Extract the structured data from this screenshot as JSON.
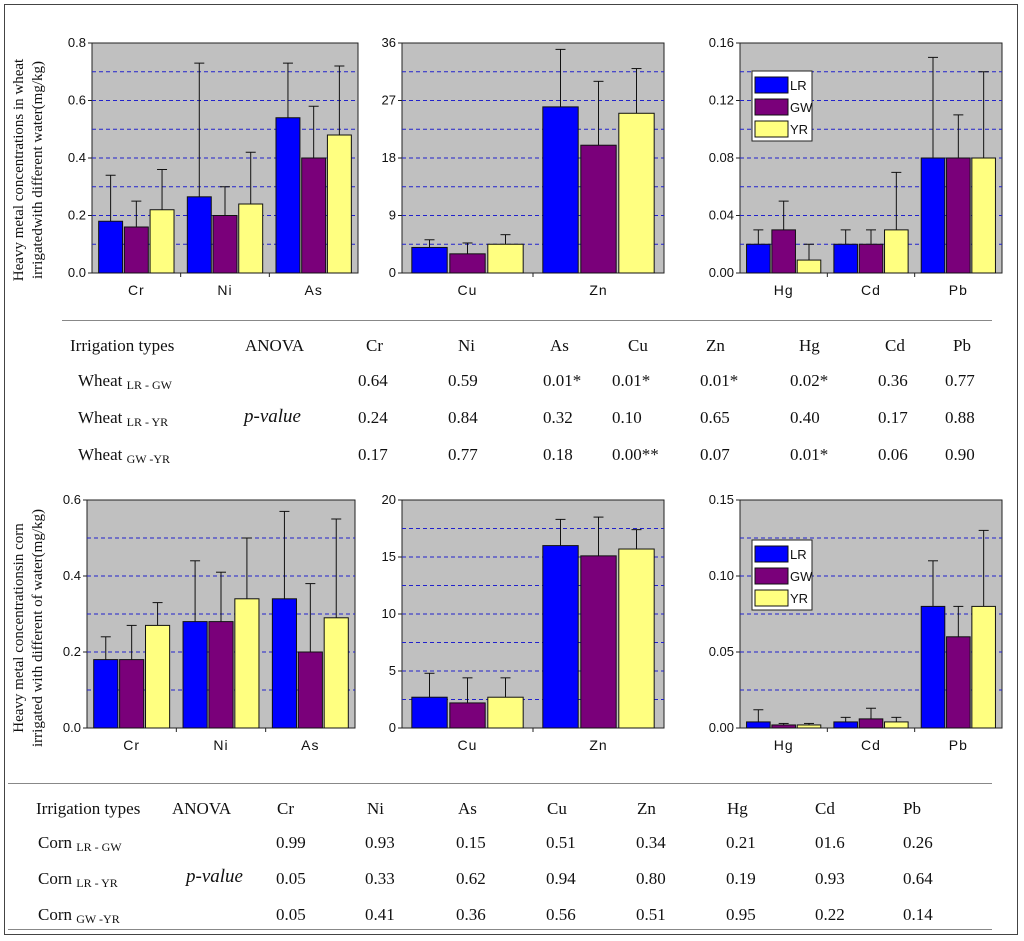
{
  "colors": {
    "LR": "#0000ff",
    "GW": "#7a007a",
    "YR": "#ffff80",
    "panel_bg": "#c0c0c0",
    "grid": "#2222cc"
  },
  "wheat_ylabel": [
    "Heavy metal concentrations in wheat",
    "irrigatedwith different water(mg/kg)"
  ],
  "corn_ylabel": [
    "Heavy metal concentrationsin corn",
    "irrigated with different of water(mg/kg)"
  ],
  "chart_data": [
    {
      "type": "bar",
      "id": "w1",
      "group": "wheat",
      "categories": [
        "Cr",
        "Ni",
        "As"
      ],
      "series": [
        {
          "name": "LR",
          "values": [
            0.18,
            0.265,
            0.54
          ],
          "errors": [
            0.16,
            0.465,
            0.19
          ]
        },
        {
          "name": "GW",
          "values": [
            0.16,
            0.2,
            0.4
          ],
          "errors": [
            0.09,
            0.1,
            0.18
          ]
        },
        {
          "name": "YR",
          "values": [
            0.22,
            0.24,
            0.48
          ],
          "errors": [
            0.14,
            0.18,
            0.24
          ]
        }
      ],
      "ylim": [
        0,
        0.8
      ],
      "yticks": [
        "0.0",
        "0.2",
        "0.4",
        "0.6",
        "0.8"
      ],
      "grid_step": 0.1,
      "legend": false
    },
    {
      "type": "bar",
      "id": "w2",
      "group": "wheat",
      "categories": [
        "Cu",
        "Zn"
      ],
      "series": [
        {
          "name": "LR",
          "values": [
            4,
            26
          ],
          "errors": [
            1.2,
            9
          ]
        },
        {
          "name": "GW",
          "values": [
            3,
            20
          ],
          "errors": [
            1.7,
            10
          ]
        },
        {
          "name": "YR",
          "values": [
            4.5,
            25
          ],
          "errors": [
            1.5,
            7
          ]
        }
      ],
      "ylim": [
        0,
        36
      ],
      "yticks": [
        "0",
        "9",
        "18",
        "27",
        "36"
      ],
      "grid_step": 4.5,
      "legend": false
    },
    {
      "type": "bar",
      "id": "w3",
      "group": "wheat",
      "categories": [
        "Hg",
        "Cd",
        "Pb"
      ],
      "series": [
        {
          "name": "LR",
          "values": [
            0.02,
            0.02,
            0.08
          ],
          "errors": [
            0.01,
            0.01,
            0.07
          ]
        },
        {
          "name": "GW",
          "values": [
            0.03,
            0.02,
            0.08
          ],
          "errors": [
            0.02,
            0.01,
            0.03
          ]
        },
        {
          "name": "YR",
          "values": [
            0.009,
            0.03,
            0.08
          ],
          "errors": [
            0.011,
            0.04,
            0.06
          ]
        }
      ],
      "ylim": [
        0,
        0.16
      ],
      "yticks": [
        "0.00",
        "0.04",
        "0.08",
        "0.12",
        "0.16"
      ],
      "grid_step": 0.02,
      "legend": true
    },
    {
      "type": "bar",
      "id": "c1",
      "group": "corn",
      "categories": [
        "Cr",
        "Ni",
        "As"
      ],
      "series": [
        {
          "name": "LR",
          "values": [
            0.18,
            0.28,
            0.34
          ],
          "errors": [
            0.06,
            0.16,
            0.23
          ]
        },
        {
          "name": "GW",
          "values": [
            0.18,
            0.28,
            0.2
          ],
          "errors": [
            0.09,
            0.13,
            0.18
          ]
        },
        {
          "name": "YR",
          "values": [
            0.27,
            0.34,
            0.29
          ],
          "errors": [
            0.06,
            0.16,
            0.26
          ]
        }
      ],
      "ylim": [
        0,
        0.6
      ],
      "yticks": [
        "0.0",
        "0.2",
        "0.4",
        "0.6"
      ],
      "grid_step": 0.1,
      "legend": false
    },
    {
      "type": "bar",
      "id": "c2",
      "group": "corn",
      "categories": [
        "Cu",
        "Zn"
      ],
      "series": [
        {
          "name": "LR",
          "values": [
            2.7,
            16
          ],
          "errors": [
            2.1,
            2.3
          ]
        },
        {
          "name": "GW",
          "values": [
            2.2,
            15.1
          ],
          "errors": [
            2.2,
            3.4
          ]
        },
        {
          "name": "YR",
          "values": [
            2.7,
            15.7
          ],
          "errors": [
            1.7,
            1.7
          ]
        }
      ],
      "ylim": [
        0,
        20
      ],
      "yticks": [
        "0",
        "5",
        "10",
        "15",
        "20"
      ],
      "grid_step": 2.5,
      "legend": false
    },
    {
      "type": "bar",
      "id": "c3",
      "group": "corn",
      "categories": [
        "Hg",
        "Cd",
        "Pb"
      ],
      "series": [
        {
          "name": "LR",
          "values": [
            0.004,
            0.004,
            0.08
          ],
          "errors": [
            0.008,
            0.003,
            0.03
          ]
        },
        {
          "name": "GW",
          "values": [
            0.002,
            0.006,
            0.06
          ],
          "errors": [
            0.001,
            0.007,
            0.02
          ]
        },
        {
          "name": "YR",
          "values": [
            0.002,
            0.004,
            0.08
          ],
          "errors": [
            0.001,
            0.003,
            0.05
          ]
        }
      ],
      "ylim": [
        0,
        0.15
      ],
      "yticks": [
        "0.00",
        "0.05",
        "0.10",
        "0.15"
      ],
      "grid_step": 0.025,
      "legend": true
    }
  ],
  "wheat_table": {
    "headers": [
      "Irrigation types",
      "ANOVA",
      "Cr",
      "Ni",
      "As",
      "Cu",
      "Zn",
      "Hg",
      "Cd",
      "Pb"
    ],
    "pvalue_label": "p-value",
    "rows": [
      {
        "crop": "Wheat",
        "sub": "LR - GW",
        "values": [
          "0.64",
          "0.59",
          "0.01*",
          "0.01*",
          "0.01*",
          "0.02*",
          "0.36",
          "0.77"
        ]
      },
      {
        "crop": "Wheat",
        "sub": "LR - YR",
        "values": [
          "0.24",
          "0.84",
          "0.32",
          "0.10",
          "0.65",
          "0.40",
          "0.17",
          "0.88"
        ]
      },
      {
        "crop": "Wheat",
        "sub": "GW -YR",
        "values": [
          "0.17",
          "0.77",
          "0.18",
          "0.00**",
          "0.07",
          "0.01*",
          "0.06",
          "0.90"
        ]
      }
    ]
  },
  "corn_table": {
    "headers": [
      "Irrigation types",
      "ANOVA",
      "Cr",
      "Ni",
      "As",
      "Cu",
      "Zn",
      "Hg",
      "Cd",
      "Pb"
    ],
    "pvalue_label": "p-value",
    "rows": [
      {
        "crop": "Corn",
        "sub": "LR - GW",
        "values": [
          "0.99",
          "0.93",
          "0.15",
          "0.51",
          "0.34",
          "0.21",
          "01.6",
          "0.26"
        ]
      },
      {
        "crop": "Corn",
        "sub": "LR - YR",
        "values": [
          "0.05",
          "0.33",
          "0.62",
          "0.94",
          "0.80",
          "0.19",
          "0.93",
          "0.64"
        ]
      },
      {
        "crop": "Corn",
        "sub": "GW -YR",
        "values": [
          "0.05",
          "0.41",
          "0.36",
          "0.56",
          "0.51",
          "0.95",
          "0.22",
          "0.14"
        ]
      }
    ]
  }
}
